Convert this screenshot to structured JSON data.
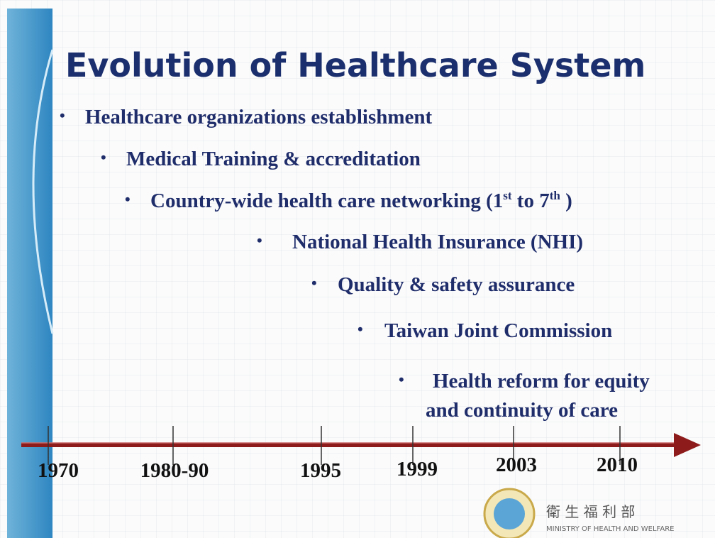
{
  "header": {
    "title": "Evolution of Healthcare System"
  },
  "items": [
    {
      "parts": [
        "Healthcare organizations establishment"
      ]
    },
    {
      "parts": [
        "Medical Training & accreditation"
      ]
    },
    {
      "parts": [
        "Country-wide health care networking (1",
        "st",
        " to 7",
        "th",
        " )"
      ]
    },
    {
      "parts": [
        "National Health Insurance (NHI)"
      ]
    },
    {
      "parts": [
        "Quality & safety assurance"
      ]
    },
    {
      "parts": [
        "Taiwan Joint Commission"
      ]
    },
    {
      "parts": [
        "Health reform for equity",
        "and continuity of care"
      ]
    }
  ],
  "timeline": {
    "labels": [
      "1970",
      "1980-90",
      "1995",
      "1999",
      "2003",
      "2010"
    ]
  },
  "logo": {
    "name_zh": "衛 生 福 利 部",
    "name_en": "MINISTRY OF HEALTH AND WELFARE"
  }
}
